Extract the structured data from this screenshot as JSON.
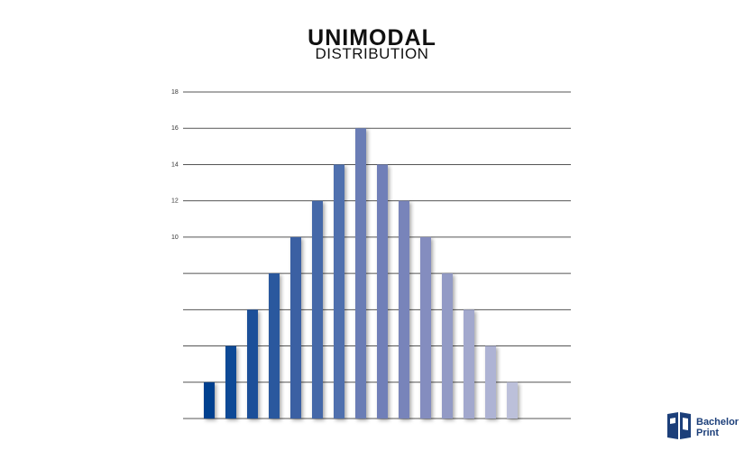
{
  "chart_data": {
    "type": "bar",
    "title": "UNIMODAL",
    "subtitle": "DISTRIBUTION",
    "ylim": [
      0,
      18
    ],
    "y_ticks_labeled": [
      "10",
      "12",
      "14",
      "16",
      "18"
    ],
    "grid": true,
    "values": [
      2,
      4,
      6,
      8,
      10,
      12,
      14,
      16,
      14,
      12,
      10,
      8,
      6,
      4,
      2
    ],
    "colors": [
      "#003f8f",
      "#0d4896",
      "#1a4f99",
      "#2a589e",
      "#3a60a3",
      "#4567a8",
      "#5070ae",
      "#6a7db5",
      "#707fb8",
      "#7884ba",
      "#848dbf",
      "#929ac5",
      "#a2a8cd",
      "#aeb3d4",
      "#bcc0da"
    ]
  },
  "logo": {
    "line1": "Bachelor",
    "line2": "Print",
    "icon": "book-icon"
  }
}
